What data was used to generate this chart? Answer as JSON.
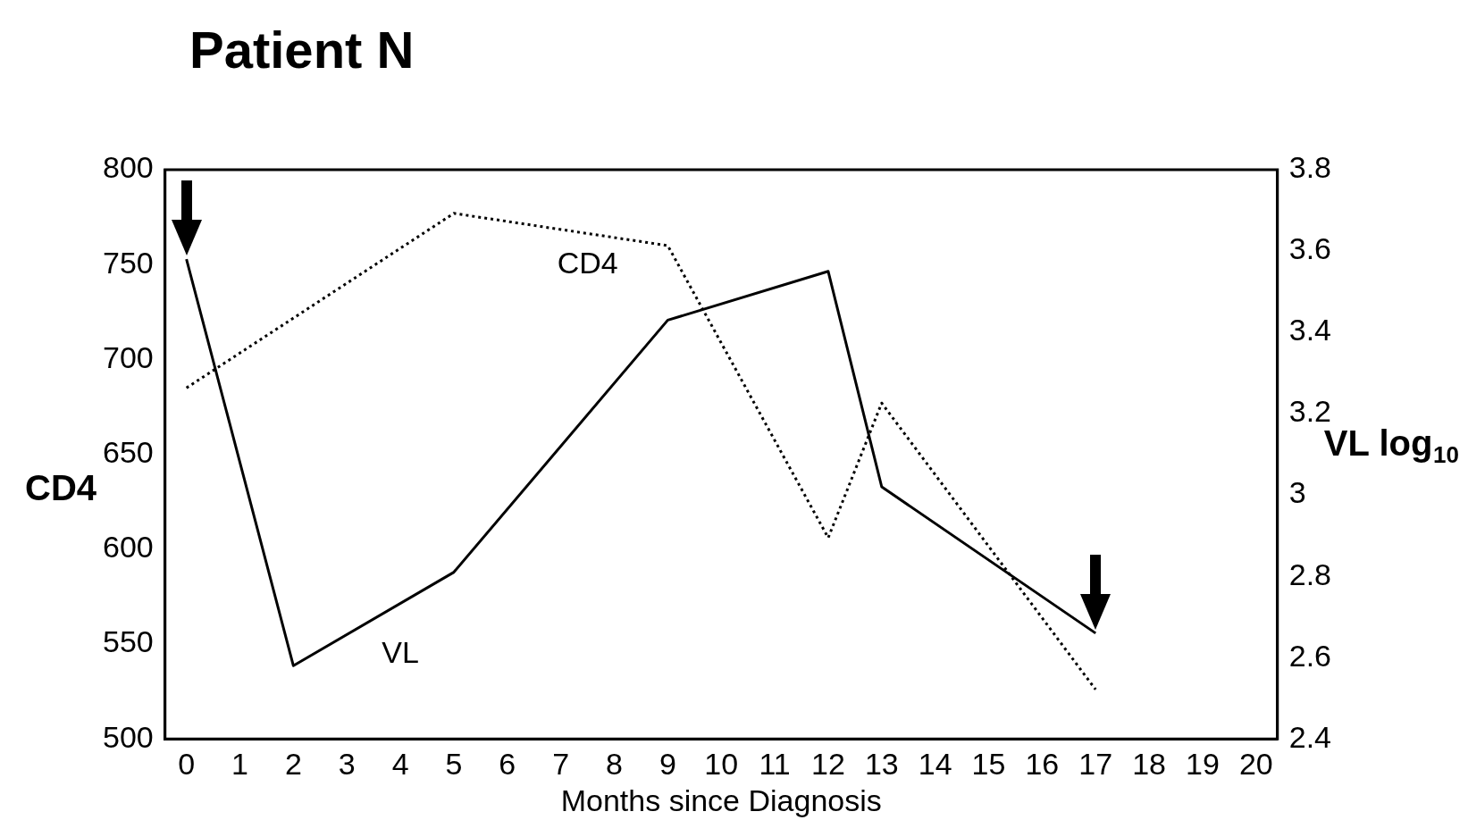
{
  "chart_data": {
    "type": "line",
    "title": "Patient N",
    "xlabel": "Months since Diagnosis",
    "ylabel": "CD4",
    "y2label": "VL log$_{10}$",
    "xlim": [
      -0.4,
      20.4
    ],
    "xticks": [
      0,
      1,
      2,
      3,
      4,
      5,
      6,
      7,
      8,
      9,
      10,
      11,
      12,
      13,
      14,
      15,
      16,
      17,
      18,
      19,
      20
    ],
    "ylim": [
      500,
      800
    ],
    "yticks": [
      500,
      550,
      600,
      650,
      700,
      750,
      800
    ],
    "y2lim": [
      2.4,
      3.8
    ],
    "y2ticks": [
      2.4,
      2.6,
      2.8,
      {
        "value": 3,
        "label": "3"
      },
      3.2,
      3.4,
      3.6,
      3.8
    ],
    "grid": false,
    "legend": false,
    "marker": "none",
    "series": [
      {
        "name": "CD4",
        "color": "#000000",
        "line_style": "dotted",
        "x": [
          0,
          5,
          9,
          12,
          13,
          17
        ],
        "values": [
          685,
          777,
          760,
          606,
          677,
          526
        ]
      },
      {
        "name": "VL",
        "color": "#000000",
        "line_style": "solid",
        "axis": "y2",
        "x": [
          0,
          2,
          5,
          9,
          12,
          13,
          17
        ],
        "values": [
          3.58,
          2.58,
          2.81,
          3.43,
          3.55,
          3.02,
          2.66
        ]
      }
    ]
  }
}
